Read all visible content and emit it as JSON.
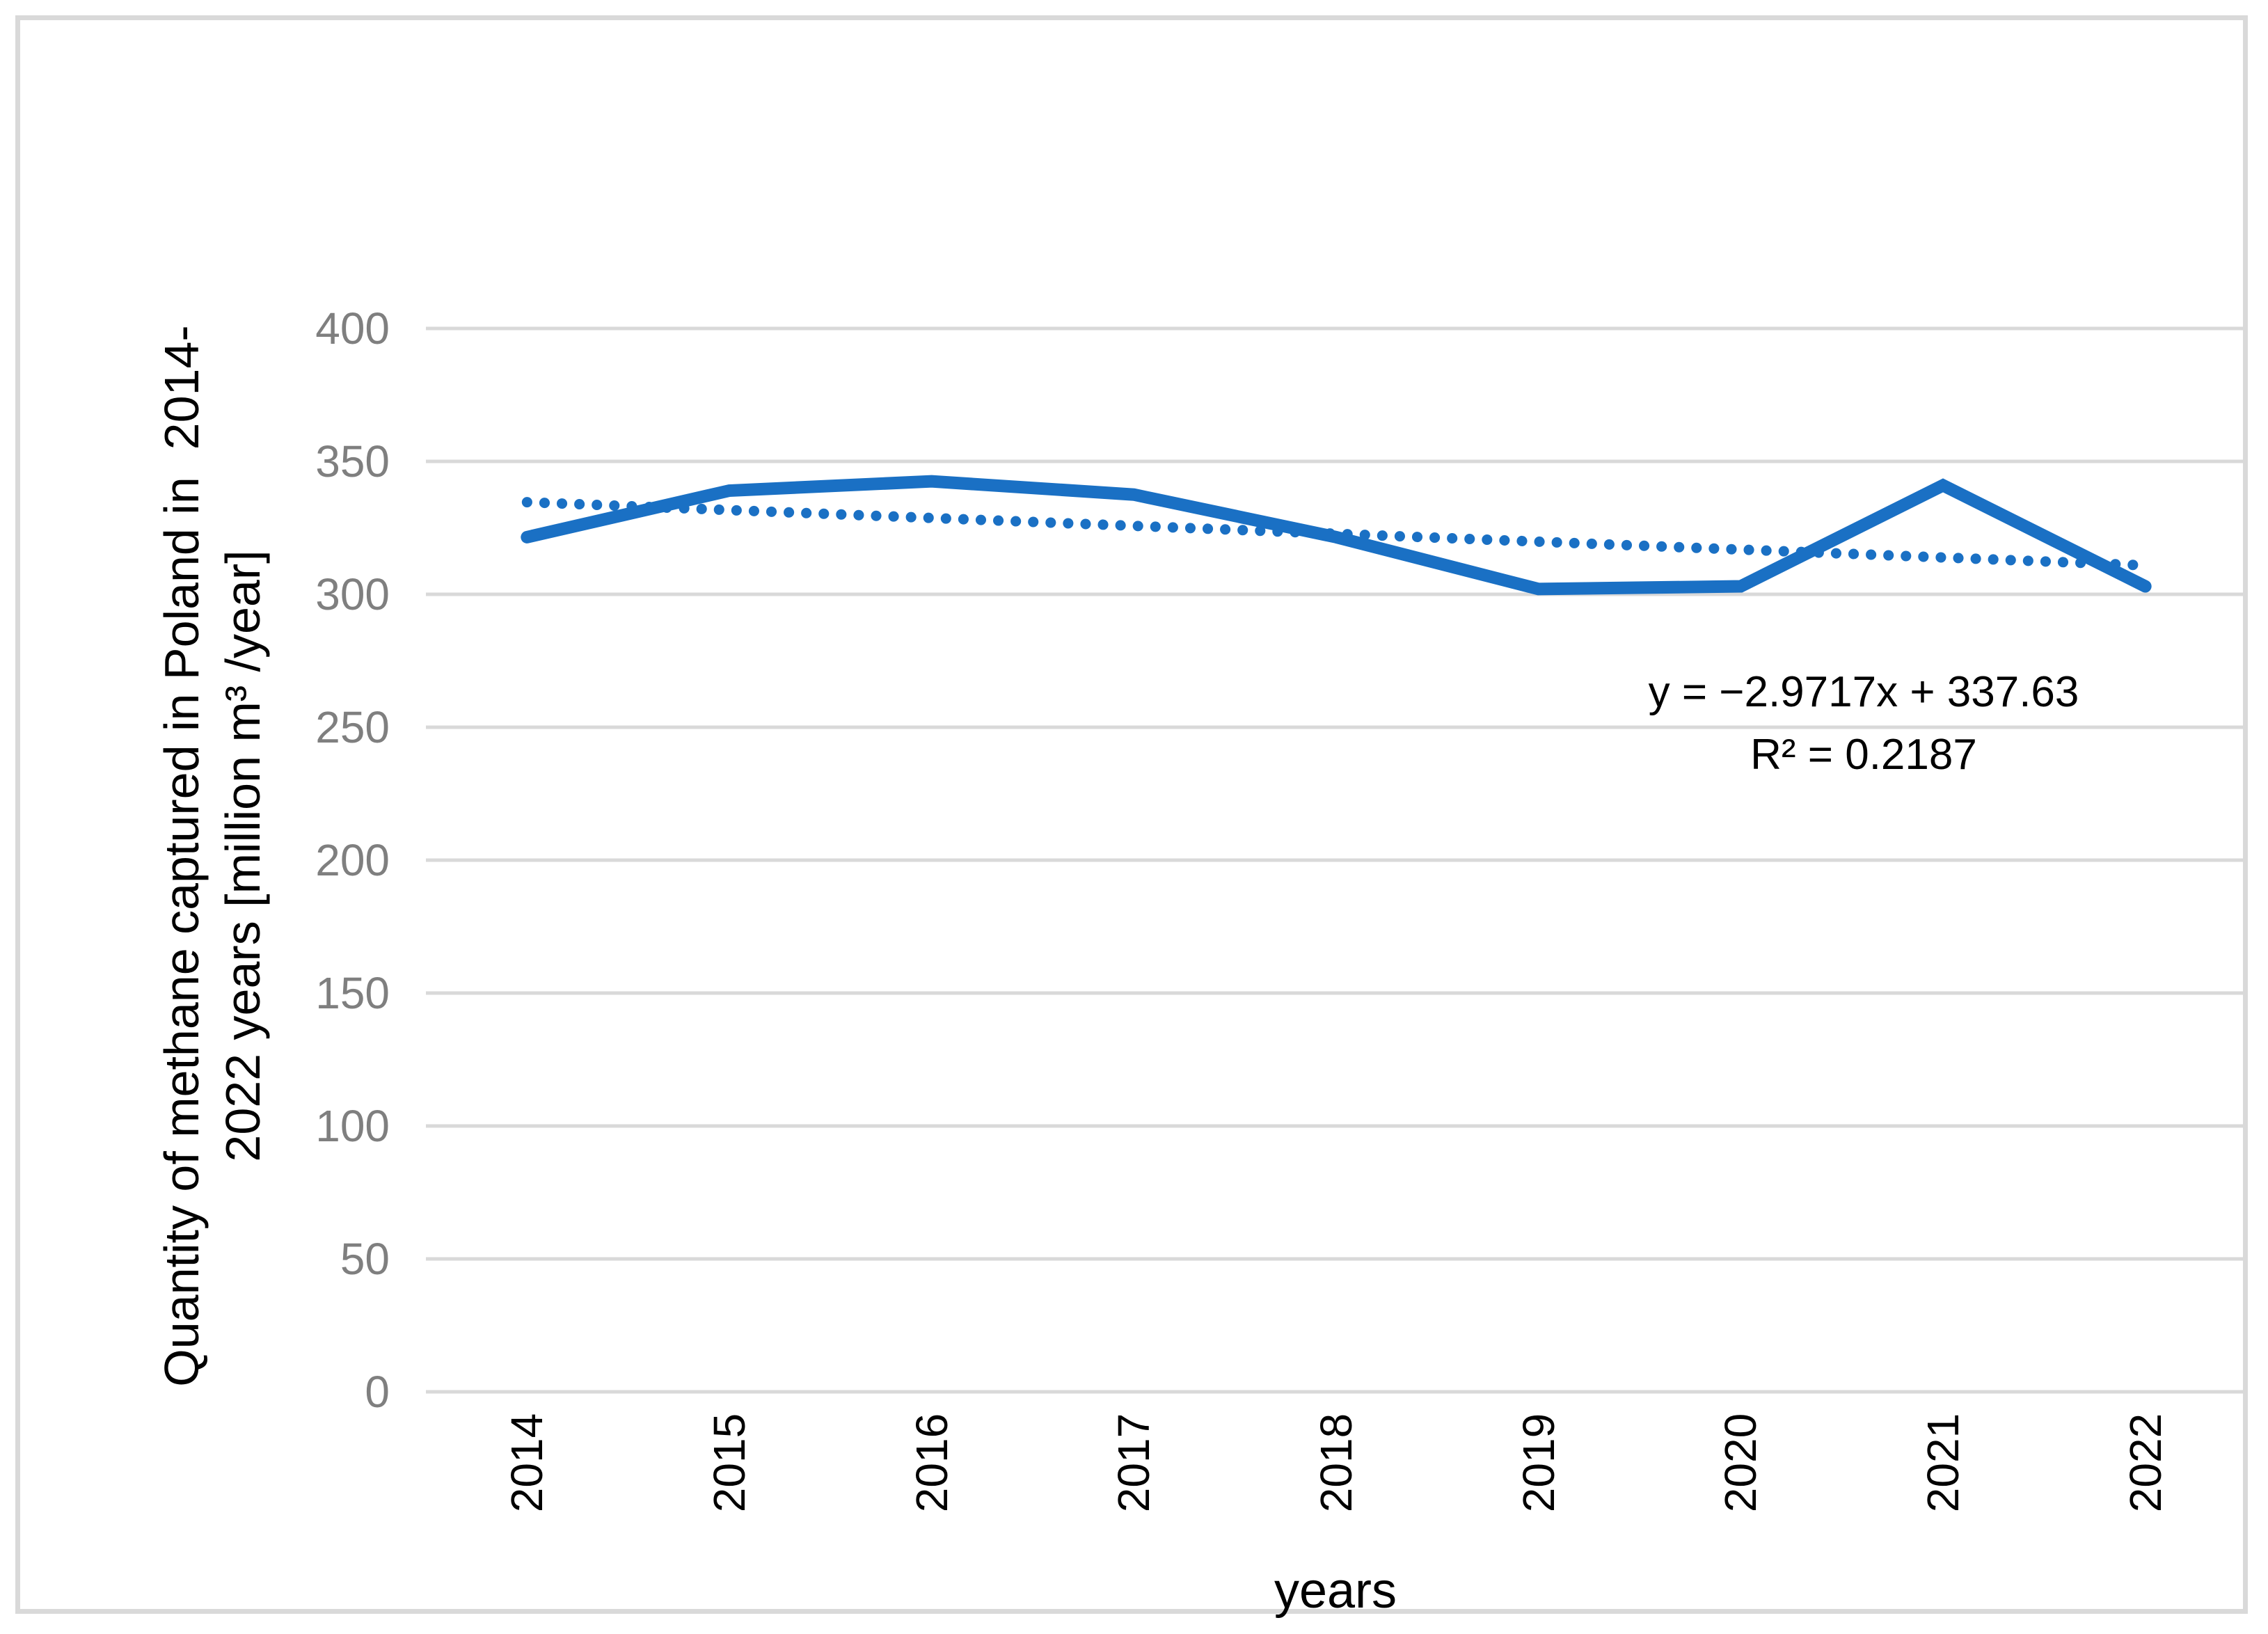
{
  "chart_data": {
    "type": "line",
    "title": "",
    "x_axis": {
      "title": "years",
      "categories": [
        "2014",
        "2015",
        "2016",
        "2017",
        "2018",
        "2019",
        "2020",
        "2021",
        "2022"
      ]
    },
    "y_axis": {
      "title_line1": "Quantity of methane captured in Poland in  2014-",
      "title_line2": "2022 years [million m³ /year]",
      "min": 0,
      "max": 400,
      "step": 50,
      "tick_labels": [
        "0",
        "50",
        "100",
        "150",
        "200",
        "250",
        "300",
        "350",
        "400"
      ]
    },
    "series": [
      {
        "name": "Quantity of methane captured in Poland",
        "values": [
          321.5,
          339,
          342.5,
          337.5,
          321.5,
          302,
          303,
          341,
          303
        ],
        "color": "#1A70C4",
        "style": "solid"
      }
    ],
    "trendline": {
      "type": "linear",
      "slope": -2.9717,
      "intercept": 337.63,
      "r_squared": 0.2187,
      "equation_label": "y = −2.9717x + 337.63",
      "r2_label": "R² = 0.2187",
      "color": "#1A70C4",
      "style": "dotted"
    },
    "grid": true,
    "legend_position": "none",
    "colors": {
      "gridline": "#D9D9D9",
      "border": "#D9D9D9",
      "tick_label": "#7F7F7F",
      "text": "#000000",
      "background": "#FFFFFF"
    }
  }
}
